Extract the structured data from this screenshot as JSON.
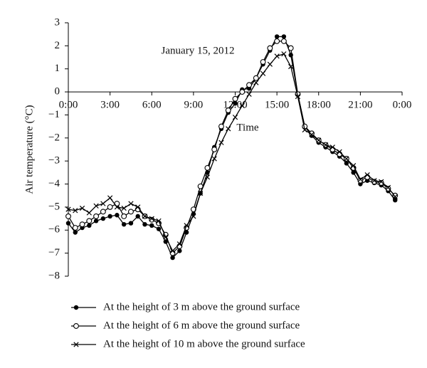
{
  "chart_data": {
    "type": "line",
    "annotation": "January 15, 2012",
    "xlabel": "Time",
    "ylabel": "Air temperature (°C)",
    "x": [
      0,
      0.5,
      1,
      1.5,
      2,
      2.5,
      3,
      3.5,
      4,
      4.5,
      5,
      5.5,
      6,
      6.5,
      7,
      7.5,
      8,
      8.5,
      9,
      9.5,
      10,
      10.5,
      11,
      11.5,
      12,
      12.5,
      13,
      13.5,
      14,
      14.5,
      15,
      15.5,
      16,
      16.5,
      17,
      17.5,
      18,
      18.5,
      19,
      19.5,
      20,
      20.5,
      21,
      21.5,
      22,
      22.5,
      23,
      23.5
    ],
    "xlim": [
      0,
      24
    ],
    "xticks": [
      {
        "value": 0,
        "label": "0:00"
      },
      {
        "value": 3,
        "label": "3:00"
      },
      {
        "value": 6,
        "label": "6:00"
      },
      {
        "value": 9,
        "label": "9:00"
      },
      {
        "value": 12,
        "label": "12:00"
      },
      {
        "value": 15,
        "label": "15:00"
      },
      {
        "value": 18,
        "label": "18:00"
      },
      {
        "value": 21,
        "label": "21:00"
      },
      {
        "value": 24,
        "label": "0:00"
      }
    ],
    "ylim": [
      -8,
      3
    ],
    "yticks": [
      {
        "value": -8,
        "label": "−8"
      },
      {
        "value": -7,
        "label": "−7"
      },
      {
        "value": -6,
        "label": "−6"
      },
      {
        "value": -5,
        "label": "−5"
      },
      {
        "value": -4,
        "label": "−4"
      },
      {
        "value": -3,
        "label": "−3"
      },
      {
        "value": -2,
        "label": "−2"
      },
      {
        "value": -1,
        "label": "−1"
      },
      0,
      1,
      2,
      3
    ],
    "legend": "bottom",
    "series": [
      {
        "name": "At the height of 3 m above the ground surface",
        "color": "#000000",
        "marker": "dot",
        "values": [
          -5.7,
          -6.1,
          -5.9,
          -5.8,
          -5.6,
          -5.5,
          -5.4,
          -5.35,
          -5.75,
          -5.7,
          -5.4,
          -5.75,
          -5.8,
          -5.95,
          -6.5,
          -7.2,
          -6.9,
          -6.1,
          -5.3,
          -4.4,
          -3.5,
          -2.4,
          -1.6,
          -0.9,
          -0.5,
          0.1,
          0.15,
          0.6,
          1.2,
          1.8,
          2.4,
          2.4,
          1.6,
          -0.1,
          -1.5,
          -1.9,
          -2.2,
          -2.4,
          -2.6,
          -2.8,
          -3.1,
          -3.5,
          -4.0,
          -3.85,
          -3.95,
          -4.05,
          -4.3,
          -4.7
        ]
      },
      {
        "name": "At the height of 6 m above the ground surface",
        "color": "#000000",
        "marker": "circle",
        "values": [
          -5.4,
          -5.9,
          -5.75,
          -5.6,
          -5.4,
          -5.2,
          -5.0,
          -4.85,
          -5.4,
          -5.2,
          -5.1,
          -5.4,
          -5.55,
          -5.7,
          -6.2,
          -7.0,
          -6.7,
          -5.9,
          -5.1,
          -4.1,
          -3.3,
          -2.5,
          -1.5,
          -0.8,
          -0.3,
          0.0,
          0.3,
          0.6,
          1.3,
          1.9,
          2.2,
          2.2,
          1.9,
          -0.1,
          -1.5,
          -1.8,
          -2.1,
          -2.3,
          -2.5,
          -2.7,
          -2.9,
          -3.3,
          -3.85,
          -3.7,
          -3.9,
          -3.95,
          -4.2,
          -4.5
        ]
      },
      {
        "name": "At the height of 10 m above the ground surface",
        "color": "#000000",
        "marker": "x",
        "values": [
          -5.1,
          -5.15,
          -5.05,
          -5.25,
          -4.95,
          -4.85,
          -4.6,
          -5.0,
          -5.05,
          -4.85,
          -5.0,
          -5.4,
          -5.5,
          -5.6,
          -6.3,
          -6.9,
          -6.6,
          -5.8,
          -5.4,
          -4.4,
          -3.7,
          -2.9,
          -2.2,
          -1.6,
          -1.1,
          -0.6,
          -0.1,
          0.4,
          0.8,
          1.2,
          1.55,
          1.65,
          1.1,
          -0.2,
          -1.65,
          -1.85,
          -2.1,
          -2.3,
          -2.4,
          -2.6,
          -2.9,
          -3.2,
          -3.8,
          -3.6,
          -3.85,
          -3.9,
          -4.15,
          -4.55
        ]
      }
    ]
  }
}
